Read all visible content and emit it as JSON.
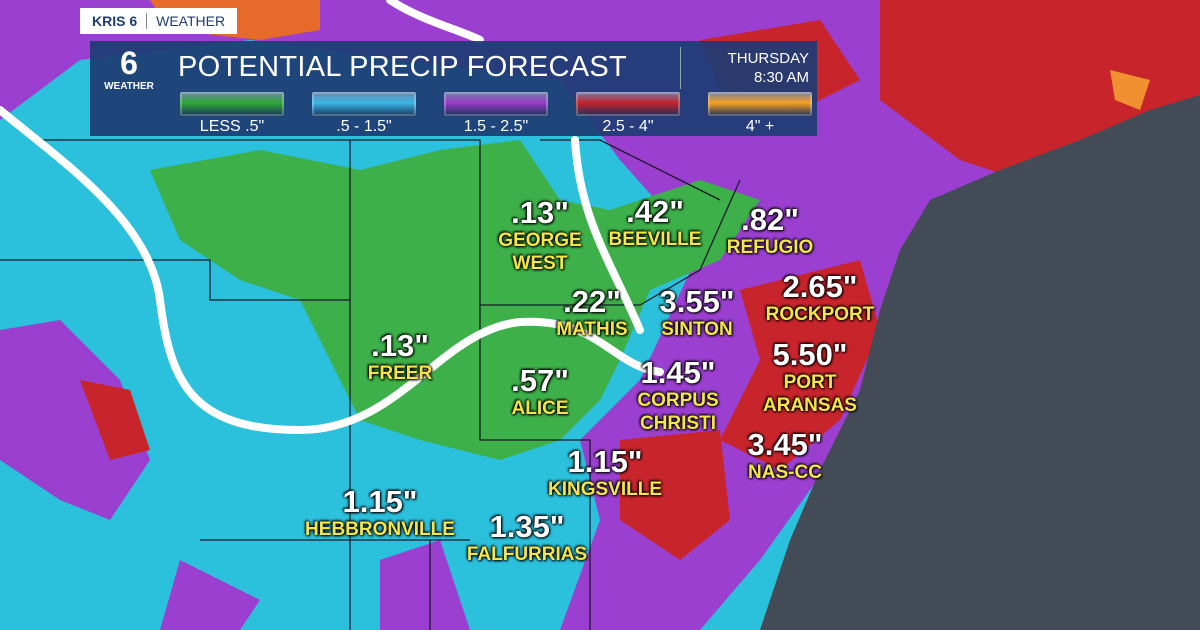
{
  "brand": {
    "station": "KRIS 6",
    "section": "WEATHER"
  },
  "legend": {
    "logo_number": "6",
    "logo_text": "WEATHER",
    "title": "POTENTIAL PRECIP FORECAST",
    "day": "THURSDAY",
    "time": "8:30 AM",
    "ranges": [
      {
        "label": "LESS .5\"",
        "color": "#2fa836"
      },
      {
        "label": ".5 - 1.5\"",
        "color": "#3ab6e6"
      },
      {
        "label": "1.5 - 2.5\"",
        "color": "#9a3cc8"
      },
      {
        "label": "2.5 - 4\"",
        "color": "#c4222a"
      },
      {
        "label": "4\" +",
        "color": "#f5a020"
      }
    ]
  },
  "cities": [
    {
      "value": ".13\"",
      "name": "GEORGE\nWEST"
    },
    {
      "value": ".42\"",
      "name": "BEEVILLE"
    },
    {
      "value": ".82\"",
      "name": "REFUGIO"
    },
    {
      "value": "2.65\"",
      "name": "ROCKPORT"
    },
    {
      "value": "3.55\"",
      "name": "SINTON"
    },
    {
      "value": ".22\"",
      "name": "MATHIS"
    },
    {
      "value": ".13\"",
      "name": "FREER"
    },
    {
      "value": ".57\"",
      "name": "ALICE"
    },
    {
      "value": "1.45\"",
      "name": "CORPUS\nCHRISTI"
    },
    {
      "value": "5.50\"",
      "name": "PORT\nARANSAS"
    },
    {
      "value": "3.45\"",
      "name": "NAS-CC"
    },
    {
      "value": "1.15\"",
      "name": "KINGSVILLE"
    },
    {
      "value": "1.15\"",
      "name": "HEBBRONVILLE"
    },
    {
      "value": "1.35\"",
      "name": "FALFURRIAS"
    }
  ]
}
